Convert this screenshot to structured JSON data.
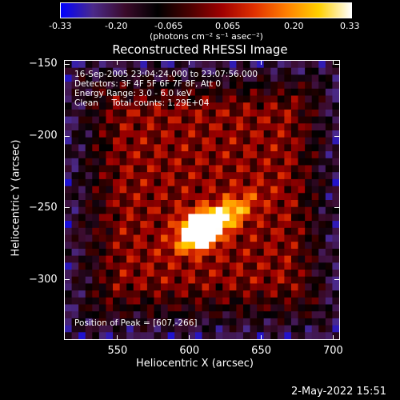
{
  "colors": {
    "background": "#000000",
    "colormap": [
      "#0000ff",
      "#4b2a8a",
      "#3a0a2a",
      "#000000",
      "#4a0000",
      "#a00000",
      "#e03000",
      "#ff8000",
      "#ffd000",
      "#ffffff"
    ]
  },
  "colorbar": {
    "tick_labels": [
      "-0.33",
      "-0.20",
      "-0.065",
      "0.065",
      "0.20",
      "0.33"
    ],
    "units": "(photons cm⁻² s⁻¹ asec⁻²)"
  },
  "image_info": {
    "time_range": "16-Sep-2005 23:04:24.000 to 23:07:56.000",
    "detectors": "Detectors: 3F 4F 5F 6F 7F 8F, Att 0",
    "energy_range": "Energy Range: 3.0 - 6.0 keV",
    "method_counts": "Clean     Total counts: 1.29E+04",
    "peak_position": "Position of Peak = [607,-266]"
  },
  "footer": {
    "date": "2-May-2022 15:51"
  },
  "chart_data": {
    "type": "heatmap",
    "title": "Reconstructed RHESSI Image",
    "xlabel": "Heliocentric X (arcsec)",
    "ylabel": "Heliocentric Y (arcsec)",
    "xlim": [
      513,
      705
    ],
    "ylim": [
      -342,
      -147
    ],
    "xticks": [
      550,
      600,
      650,
      700
    ],
    "yticks": [
      -150,
      -200,
      -250,
      -300
    ],
    "colorbar_range": [
      -0.33,
      0.33
    ],
    "peak": {
      "x": 607,
      "y": -266
    },
    "source": {
      "x_center": 618,
      "y_center": -260,
      "orientation": "elongated NE-SW"
    }
  }
}
